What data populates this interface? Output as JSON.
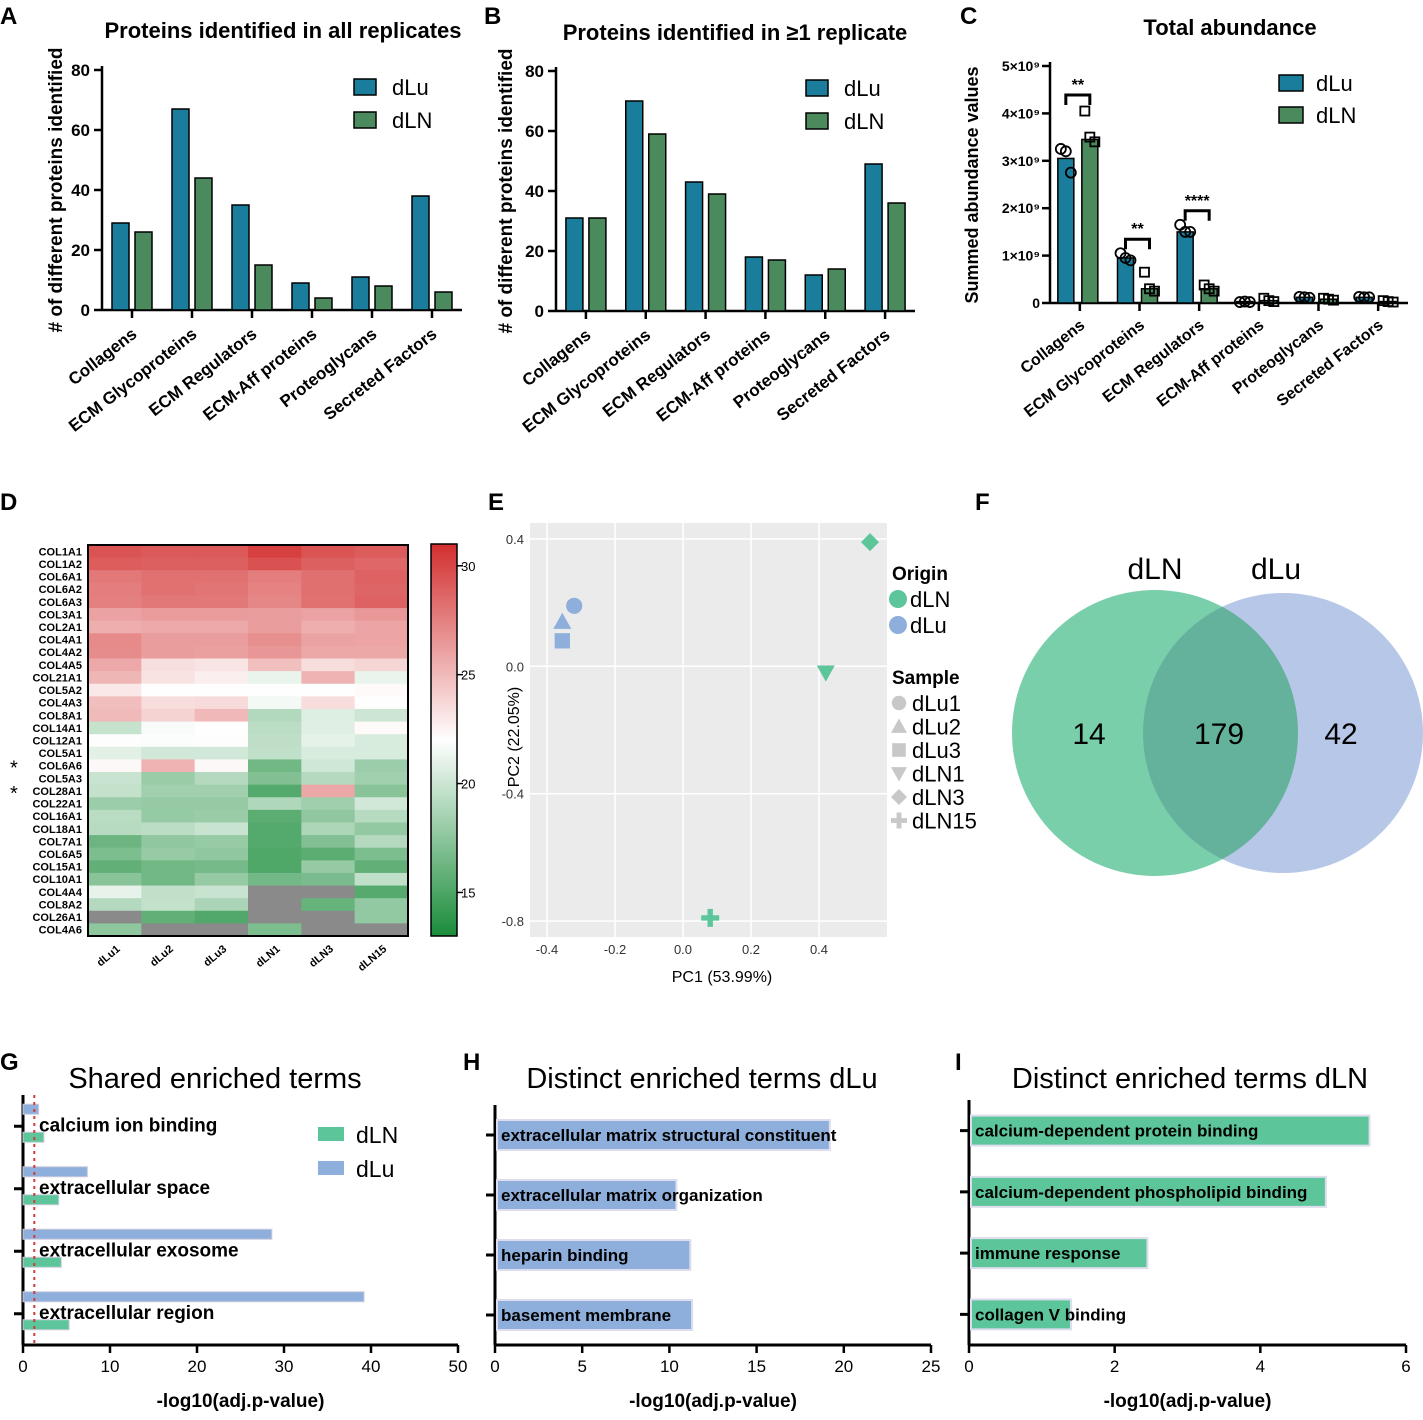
{
  "colors": {
    "dLu_bar": "#1a7d9c",
    "dLN_bar": "#4a8a5c",
    "dLu_soft": "#8eaedc",
    "dLN_soft": "#5cc69a",
    "heat_low": "#1a8c3a",
    "heat_mid": "#ffffff",
    "heat_high": "#d32f2f",
    "heat_na": "#8a8a8a",
    "venn_dLN": "#6ccaa2",
    "venn_dLu": "#a9bde3",
    "threshold": "#d23a3a"
  },
  "panel_letters": [
    "A",
    "B",
    "C",
    "D",
    "E",
    "F",
    "G",
    "H",
    "I"
  ],
  "chart_data": [
    {
      "panel": "A",
      "type": "bar",
      "title": "Proteins identified in all replicates",
      "ylabel": "# of different proteins identified",
      "xlabel": "",
      "ylim": [
        0,
        80
      ],
      "yticks": [
        0,
        20,
        40,
        60,
        80
      ],
      "categories": [
        "Collagens",
        "ECM Glycoproteins",
        "ECM Regulators",
        "ECM-Aff proteins",
        "Proteoglycans",
        "Secreted Factors"
      ],
      "series": [
        {
          "name": "dLu",
          "values": [
            29,
            67,
            35,
            9,
            11,
            38
          ]
        },
        {
          "name": "dLN",
          "values": [
            26,
            44,
            15,
            4,
            8,
            6
          ]
        }
      ]
    },
    {
      "panel": "B",
      "type": "bar",
      "title": "Proteins identified in ≥1 replicate",
      "ylabel": "# of different proteins identified",
      "xlabel": "",
      "ylim": [
        0,
        80
      ],
      "yticks": [
        0,
        20,
        40,
        60,
        80
      ],
      "categories": [
        "Collagens",
        "ECM Glycoproteins",
        "ECM Regulators",
        "ECM-Aff proteins",
        "Proteoglycans",
        "Secreted Factors"
      ],
      "series": [
        {
          "name": "dLu",
          "values": [
            31,
            70,
            43,
            18,
            12,
            49
          ]
        },
        {
          "name": "dLN",
          "values": [
            31,
            59,
            39,
            17,
            14,
            36
          ]
        }
      ]
    },
    {
      "panel": "C",
      "type": "bar",
      "title": "Total abundance",
      "ylabel": "Summed abundance values",
      "xlabel": "",
      "ylim": [
        0,
        5
      ],
      "y_unit": "×10⁹",
      "yticks": [
        "0",
        "1×10⁹",
        "2×10⁹",
        "3×10⁹",
        "4×10⁹",
        "5×10⁹"
      ],
      "categories": [
        "Collagens",
        "ECM Glycoproteins",
        "ECM Regulators",
        "ECM-Aff proteins",
        "Proteoglycans",
        "Secreted Factors"
      ],
      "series": [
        {
          "name": "dLu",
          "values": [
            3.05,
            0.95,
            1.5,
            0.03,
            0.12,
            0.12
          ],
          "points": [
            [
              3.25,
              3.2,
              2.75
            ],
            [
              1.05,
              0.95,
              0.9
            ],
            [
              1.65,
              1.5,
              1.5
            ],
            [
              0.02,
              0.03,
              0.02
            ],
            [
              0.13,
              0.12,
              0.11
            ],
            [
              0.13,
              0.12,
              0.12
            ]
          ]
        },
        {
          "name": "dLN",
          "values": [
            3.45,
            0.3,
            0.3,
            0.05,
            0.08,
            0.03
          ],
          "points": [
            [
              4.05,
              3.5,
              3.4
            ],
            [
              0.65,
              0.3,
              0.25
            ],
            [
              0.38,
              0.3,
              0.25
            ],
            [
              0.1,
              0.05,
              0.03
            ],
            [
              0.1,
              0.08,
              0.06
            ],
            [
              0.05,
              0.03,
              0.02
            ]
          ]
        }
      ],
      "significance": [
        {
          "category": "Collagens",
          "label": "**"
        },
        {
          "category": "ECM Glycoproteins",
          "label": "**"
        },
        {
          "category": "ECM Regulators",
          "label": "****"
        }
      ]
    },
    {
      "panel": "D",
      "type": "heatmap",
      "columns": [
        "dLu1",
        "dLu2",
        "dLu3",
        "dLN1",
        "dLN3",
        "dLN15"
      ],
      "rows": [
        "COL1A1",
        "COL1A2",
        "COL6A1",
        "COL6A2",
        "COL6A3",
        "COL3A1",
        "COL2A1",
        "COL4A1",
        "COL4A2",
        "COL4A5",
        "COL21A1",
        "COL5A2",
        "COL4A3",
        "COL8A1",
        "COL14A1",
        "COL12A1",
        "COL5A1",
        "COL6A6",
        "COL5A3",
        "COL28A1",
        "COL22A1",
        "COL16A1",
        "COL18A1",
        "COL7A1",
        "COL6A5",
        "COL15A1",
        "COL10A1",
        "COL4A4",
        "COL8A2",
        "COL26A1",
        "COL4A6"
      ],
      "starred_rows": [
        "COL6A6",
        "COL28A1"
      ],
      "star_symbol": "*",
      "values": [
        [
          29.5,
          29.3,
          29.3,
          30.3,
          29.5,
          29.2
        ],
        [
          29.1,
          29.0,
          29.0,
          29.6,
          29.0,
          28.7
        ],
        [
          28.0,
          28.3,
          28.3,
          27.8,
          28.4,
          28.9
        ],
        [
          27.8,
          28.3,
          28.2,
          27.6,
          28.4,
          28.8
        ],
        [
          27.7,
          28.0,
          28.0,
          27.4,
          28.3,
          28.9
        ],
        [
          26.3,
          26.6,
          26.6,
          26.5,
          26.3,
          26.7
        ],
        [
          25.8,
          26.0,
          26.0,
          26.5,
          25.8,
          26.2
        ],
        [
          27.3,
          26.5,
          26.5,
          27.1,
          26.3,
          26.2
        ],
        [
          27.2,
          26.5,
          26.4,
          26.8,
          26.1,
          26.1
        ],
        [
          26.0,
          23.8,
          23.6,
          25.1,
          23.9,
          24.2
        ],
        [
          25.5,
          23.7,
          23.2,
          21.6,
          25.6,
          21.6
        ],
        [
          23.5,
          22.4,
          22.4,
          22.4,
          22.4,
          22.7
        ],
        [
          25.2,
          23.9,
          24.0,
          22.0,
          23.9,
          22.4
        ],
        [
          25.3,
          24.3,
          25.4,
          19.3,
          21.1,
          20.4
        ],
        [
          20.1,
          22.2,
          22.4,
          19.7,
          21.2,
          22.7
        ],
        [
          22.6,
          22.3,
          22.6,
          19.8,
          21.4,
          20.9
        ],
        [
          21.3,
          20.6,
          20.6,
          19.9,
          20.9,
          20.9
        ],
        [
          22.8,
          25.6,
          22.8,
          16.6,
          20.5,
          18.4
        ],
        [
          20.2,
          18.3,
          19.4,
          17.3,
          19.4,
          18.6
        ],
        [
          20.0,
          18.6,
          18.6,
          15.4,
          26.1,
          17.6
        ],
        [
          18.4,
          18.1,
          18.1,
          19.2,
          18.5,
          20.6
        ],
        [
          19.6,
          18.1,
          18.3,
          15.7,
          17.9,
          19.5
        ],
        [
          19.5,
          19.7,
          20.2,
          15.4,
          19.1,
          18.0
        ],
        [
          16.4,
          17.9,
          18.2,
          15.4,
          17.3,
          19.4
        ],
        [
          17.1,
          18.2,
          17.9,
          15.2,
          15.7,
          17.1
        ],
        [
          16.0,
          16.6,
          16.8,
          15.2,
          18.1,
          16.0
        ],
        [
          17.6,
          16.6,
          18.1,
          16.7,
          17.0,
          19.9
        ],
        [
          21.5,
          19.9,
          20.2,
          null,
          null,
          15.5
        ],
        [
          19.4,
          20.0,
          19.0,
          null,
          16.2,
          18.0
        ],
        [
          null,
          16.0,
          15.3,
          null,
          null,
          18.0
        ],
        [
          17.8,
          null,
          null,
          17.1,
          null,
          null
        ]
      ],
      "colorbar": {
        "min": 13,
        "max": 31,
        "mid": 22.5,
        "ticks": [
          30,
          25,
          20,
          15
        ]
      }
    },
    {
      "panel": "E",
      "type": "scatter",
      "xlabel": "PC1 (53.99%)",
      "ylabel": "PC2 (22.05%)",
      "xlim": [
        -0.45,
        0.6
      ],
      "ylim": [
        -0.85,
        0.45
      ],
      "xticks": [
        -0.4,
        -0.2,
        0.0,
        0.2,
        0.4
      ],
      "yticks": [
        0.4,
        0.0,
        -0.4,
        -0.8
      ],
      "points": [
        {
          "sample": "dLu1",
          "origin": "dLu",
          "x": -0.32,
          "y": 0.19,
          "shape": "circle"
        },
        {
          "sample": "dLu2",
          "origin": "dLu",
          "x": -0.355,
          "y": 0.14,
          "shape": "triangle-up"
        },
        {
          "sample": "dLu3",
          "origin": "dLu",
          "x": -0.355,
          "y": 0.08,
          "shape": "square"
        },
        {
          "sample": "dLN1",
          "origin": "dLN",
          "x": 0.42,
          "y": -0.02,
          "shape": "triangle-down"
        },
        {
          "sample": "dLN3",
          "origin": "dLN",
          "x": 0.55,
          "y": 0.39,
          "shape": "diamond"
        },
        {
          "sample": "dLN15",
          "origin": "dLN",
          "x": 0.08,
          "y": -0.79,
          "shape": "plus"
        }
      ],
      "legend": {
        "origin_title": "Origin",
        "origins": [
          "dLN",
          "dLu"
        ],
        "sample_title": "Sample",
        "samples": [
          "dLu1",
          "dLu2",
          "dLu3",
          "dLN1",
          "dLN3",
          "dLN15"
        ]
      }
    },
    {
      "panel": "F",
      "type": "venn",
      "sets": [
        "dLN",
        "dLu"
      ],
      "only_dLN": 14,
      "shared": 179,
      "only_dLu": 42
    },
    {
      "panel": "G",
      "type": "bar",
      "orientation": "horizontal",
      "title": "Shared enriched terms",
      "xlabel": "-log10(adj.p-value)",
      "xlim": [
        0,
        50
      ],
      "xticks": [
        0,
        10,
        20,
        30,
        40,
        50
      ],
      "threshold": 1.3,
      "categories": [
        "calcium ion binding",
        "extracellular space",
        "extracellular exosome",
        "extracellular region"
      ],
      "series": [
        {
          "name": "dLu",
          "values": [
            1.8,
            7.4,
            28.6,
            39.2
          ]
        },
        {
          "name": "dLN",
          "values": [
            2.4,
            4.1,
            4.4,
            5.3
          ]
        }
      ],
      "legend": [
        "dLN",
        "dLu"
      ]
    },
    {
      "panel": "H",
      "type": "bar",
      "orientation": "horizontal",
      "title": "Distinct enriched terms dLu",
      "xlabel": "-log10(adj.p-value)",
      "xlim": [
        0,
        25
      ],
      "xticks": [
        0,
        5,
        10,
        15,
        20,
        25
      ],
      "categories": [
        "extracellular matrix structural constituent",
        "extracellular matrix organization",
        "heparin binding",
        "basement membrane"
      ],
      "values": [
        19.2,
        10.4,
        11.2,
        11.3
      ]
    },
    {
      "panel": "I",
      "type": "bar",
      "orientation": "horizontal",
      "title": "Distinct enriched terms dLN",
      "xlabel": "-log10(adj.p-value)",
      "xlim": [
        0,
        6
      ],
      "xticks": [
        0,
        2,
        4,
        6
      ],
      "categories": [
        "calcium-dependent protein binding",
        "calcium-dependent phospholipid binding",
        "immune response",
        "collagen V binding"
      ],
      "values": [
        5.5,
        4.9,
        2.45,
        1.4
      ]
    }
  ]
}
